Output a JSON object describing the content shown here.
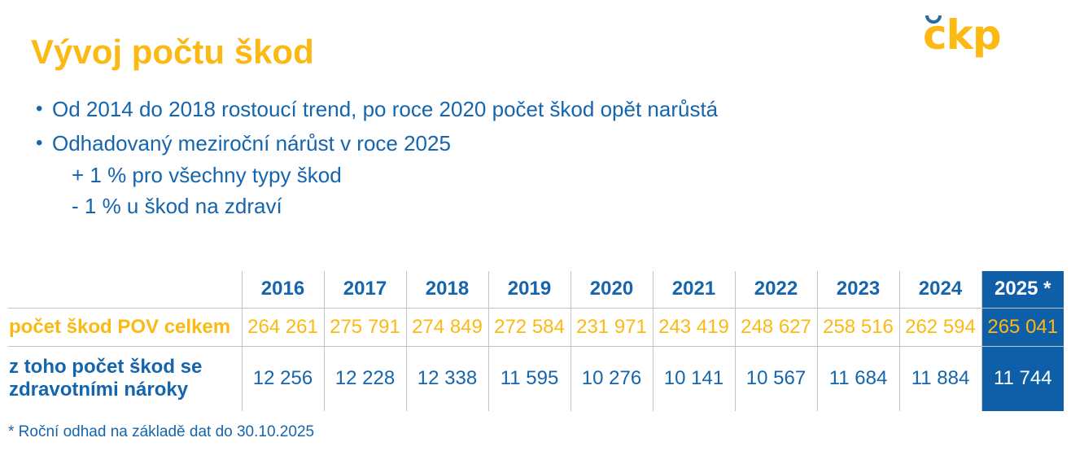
{
  "slide": {
    "title": "Vývoj počtu škod",
    "footnote": "* Roční odhad na základě dat do 30.10.2025"
  },
  "logo": {
    "text": "čkp"
  },
  "colors": {
    "brand_yellow": "#FDB913",
    "brand_blue": "#1565AD",
    "highlight_column_bg": "#0F5FA8",
    "grid_gray": "#C4C4C4"
  },
  "bullets": {
    "items": [
      {
        "level": 1,
        "text": "Od 2014 do 2018 rostoucí trend, po roce 2020 počet škod opět narůstá"
      },
      {
        "level": 1,
        "text": "Odhadovaný meziroční nárůst v roce 2025"
      },
      {
        "level": 2,
        "text": "+ 1 % pro všechny typy škod"
      },
      {
        "level": 2,
        "text": "- 1 % u škod na zdraví"
      }
    ]
  },
  "table": {
    "years": [
      "2016",
      "2017",
      "2018",
      "2019",
      "2020",
      "2021",
      "2022",
      "2023",
      "2024",
      "2025 *"
    ],
    "highlight_year": "2025 *",
    "rows": [
      {
        "label": "počet škod POV celkem",
        "values": [
          "264 261",
          "275 791",
          "274 849",
          "272 584",
          "231 971",
          "243 419",
          "248 627",
          "258 516",
          "262 594",
          "265 041"
        ]
      },
      {
        "label": "z toho počet škod se zdravotními nároky",
        "values": [
          "12 256",
          "12 228",
          "12 338",
          "11 595",
          "10 276",
          "10 141",
          "10 567",
          "11 684",
          "11 884",
          "11 744"
        ]
      }
    ]
  },
  "chart_data": {
    "type": "table",
    "title": "Vývoj počtu škod",
    "categories": [
      "2016",
      "2017",
      "2018",
      "2019",
      "2020",
      "2021",
      "2022",
      "2023",
      "2024",
      "2025"
    ],
    "series": [
      {
        "name": "počet škod POV celkem",
        "values": [
          264261,
          275791,
          274849,
          272584,
          231971,
          243419,
          248627,
          258516,
          262594,
          265041
        ]
      },
      {
        "name": "z toho počet škod se zdravotními nároky",
        "values": [
          12256,
          12228,
          12338,
          11595,
          10276,
          10141,
          10567,
          11684,
          11884,
          11744
        ]
      }
    ],
    "highlighted_category": "2025"
  }
}
